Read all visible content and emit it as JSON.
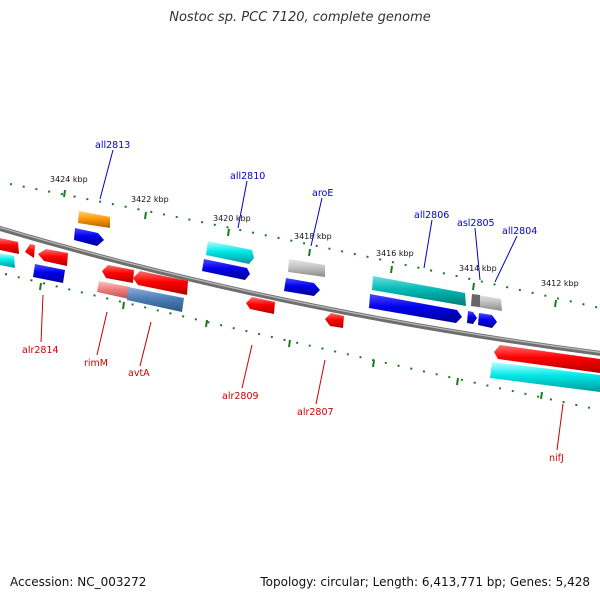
{
  "title": "Nostoc sp. PCC 7120, complete genome",
  "footer": {
    "accession": "Accession: NC_003272",
    "summary": "Topology: circular; Length: 6,413,771 bp; Genes: 5,428"
  },
  "colors": {
    "ruler_ticks": "#1b7a1b",
    "forward_label": "#0000cc",
    "reverse_label": "#cc0000"
  },
  "ruler_ticks": [
    {
      "label": "3424 kbp"
    },
    {
      "label": "3422 kbp"
    },
    {
      "label": "3420 kbp"
    },
    {
      "label": "3418 kbp"
    },
    {
      "label": "3416 kbp"
    },
    {
      "label": "3414 kbp"
    },
    {
      "label": "3412 kbp"
    }
  ],
  "gene_labels": [
    {
      "name": "all2813",
      "strand": "forward"
    },
    {
      "name": "all2810",
      "strand": "forward"
    },
    {
      "name": "aroE",
      "strand": "forward"
    },
    {
      "name": "all2806",
      "strand": "forward"
    },
    {
      "name": "asl2805",
      "strand": "forward"
    },
    {
      "name": "all2804",
      "strand": "forward"
    },
    {
      "name": "alr2814",
      "strand": "reverse"
    },
    {
      "name": "rimM",
      "strand": "reverse"
    },
    {
      "name": "avtA",
      "strand": "reverse"
    },
    {
      "name": "alr2809",
      "strand": "reverse"
    },
    {
      "name": "alr2807",
      "strand": "reverse"
    },
    {
      "name": "nifJ",
      "strand": "reverse"
    }
  ]
}
